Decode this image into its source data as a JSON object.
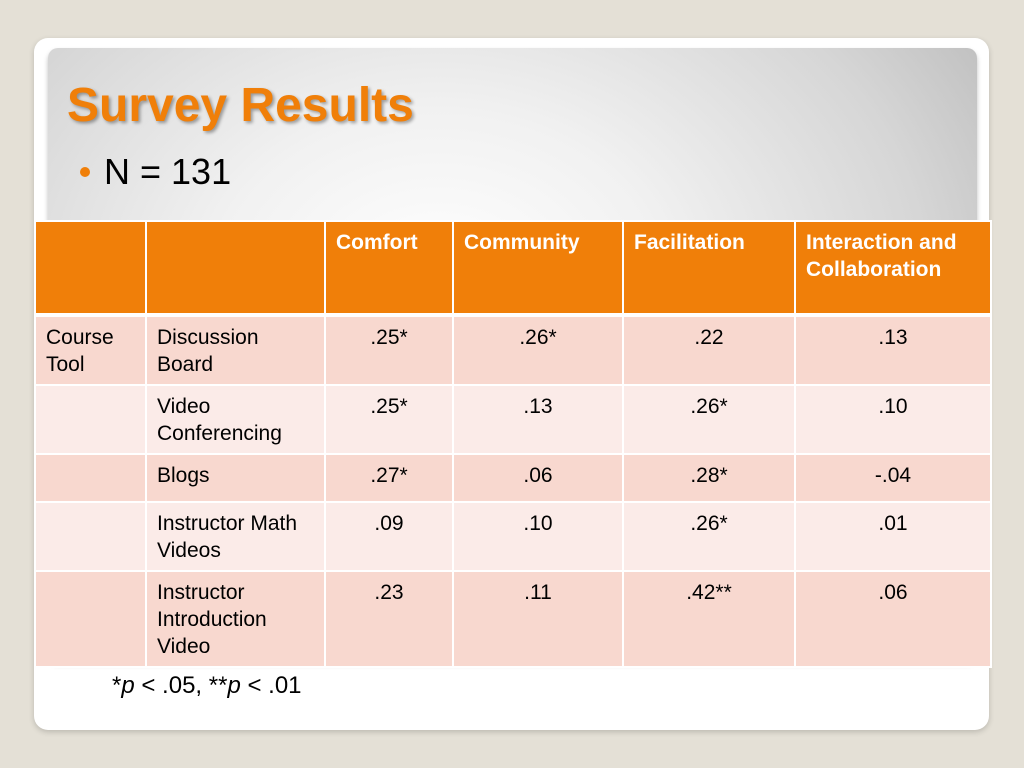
{
  "slide": {
    "title": "Survey Results",
    "bullet": "N = 131",
    "accent_color": "#f07f09",
    "bullet_icon": "orange-dot-bullet"
  },
  "table": {
    "headers": [
      "",
      "",
      "Comfort",
      "Community",
      "Facilitation",
      "Interaction and Collaboration"
    ],
    "rows": [
      {
        "group": "Course Tool",
        "tool": "Discussion Board",
        "values": [
          ".25*",
          ".26*",
          ".22",
          ".13"
        ]
      },
      {
        "group": "",
        "tool": "Video Conferencing",
        "values": [
          ".25*",
          ".13",
          ".26*",
          ".10"
        ]
      },
      {
        "group": "",
        "tool": "Blogs",
        "values": [
          ".27*",
          ".06",
          ".28*",
          "-.04"
        ]
      },
      {
        "group": "",
        "tool": "Instructor Math Videos",
        "values": [
          ".09",
          ".10",
          ".26*",
          ".01"
        ]
      },
      {
        "group": "",
        "tool": "Instructor Introduction Video",
        "values": [
          ".23",
          ".11",
          ".42**",
          ".06"
        ]
      }
    ]
  },
  "footnote": {
    "star1": "*",
    "p1": "p",
    "text1": " < .05, **",
    "p2": "p",
    "text2": " < .01"
  }
}
